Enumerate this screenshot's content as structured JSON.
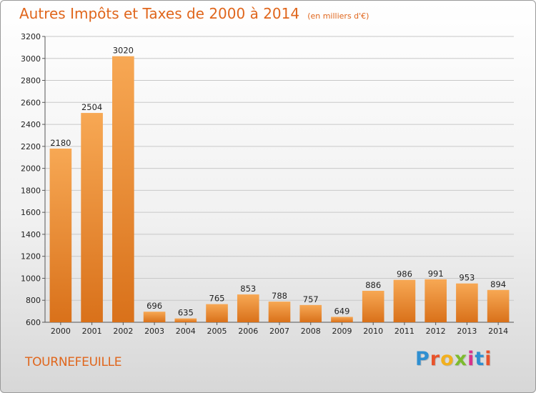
{
  "header": {
    "title": "Autres Impôts et Taxes de 2000 à 2014",
    "subtitle": "(en milliers d'€)"
  },
  "footer": {
    "city": "TOURNEFEUILLE",
    "logo": "Proxiti",
    "logo_colors": [
      "#2f8fd1",
      "#e8532b",
      "#f2b01e",
      "#7dbb2e",
      "#d8338c",
      "#2f8fd1",
      "#e8532b"
    ]
  },
  "colors": {
    "bar_top": "#f7a854",
    "bar_bottom": "#d9711a",
    "grid": "#c8c8c8",
    "accent": "#e0661c"
  },
  "chart_data": {
    "type": "bar",
    "title": "Autres Impôts et Taxes de 2000 à 2014",
    "subtitle": "(en milliers d'€)",
    "xlabel": "",
    "ylabel": "",
    "categories": [
      "2000",
      "2001",
      "2002",
      "2003",
      "2004",
      "2005",
      "2006",
      "2007",
      "2008",
      "2009",
      "2010",
      "2011",
      "2012",
      "2013",
      "2014"
    ],
    "values": [
      2180,
      2504,
      3020,
      696,
      635,
      765,
      853,
      788,
      757,
      649,
      886,
      986,
      991,
      953,
      894
    ],
    "ylim": [
      600,
      3200
    ],
    "yticks": [
      600,
      800,
      1000,
      1200,
      1400,
      1600,
      1800,
      2000,
      2200,
      2400,
      2600,
      2800,
      3000,
      3200
    ],
    "grid": true,
    "legend": "none"
  }
}
